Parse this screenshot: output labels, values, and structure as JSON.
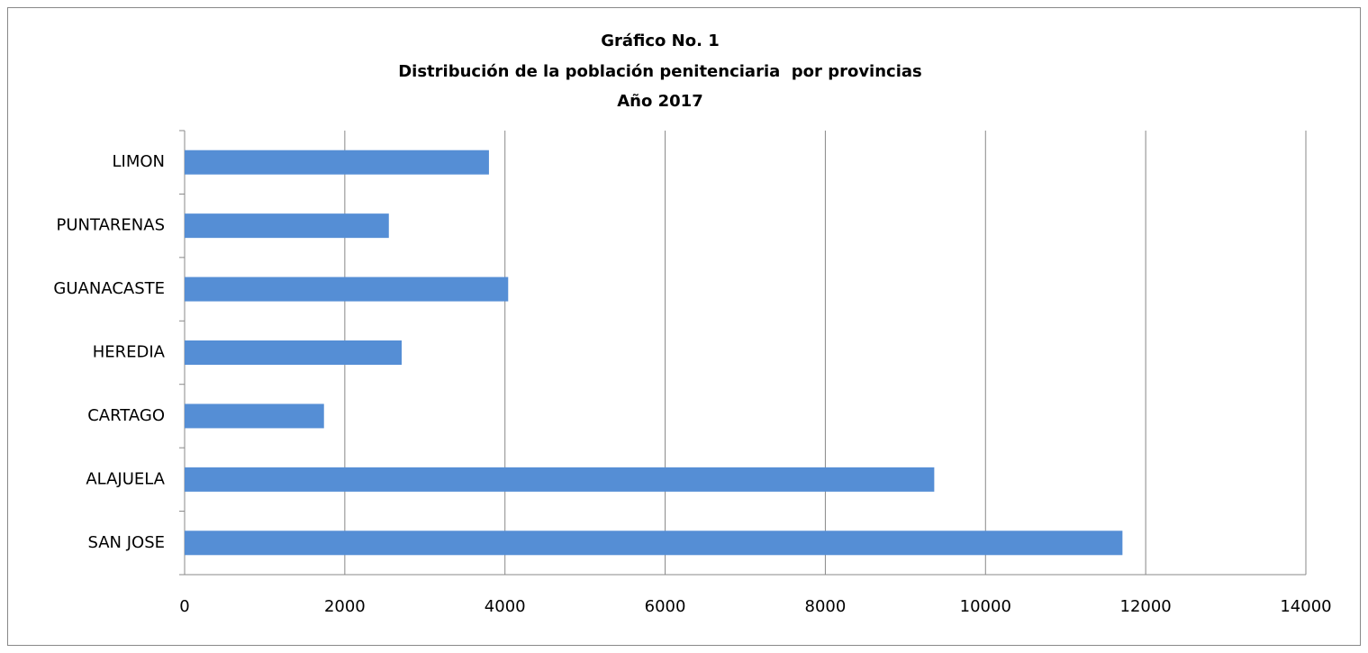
{
  "chart_data": {
    "type": "bar",
    "orientation": "horizontal",
    "title": [
      "Gráfico No. 1",
      "Distribución de la población penitenciaria  por provincias",
      "Año 2017"
    ],
    "categories": [
      "SAN JOSE",
      "ALAJUELA",
      "CARTAGO",
      "HEREDIA",
      "GUANACASTE",
      "PUNTARENAS",
      "LIMON"
    ],
    "values": [
      11710,
      9360,
      1740,
      2710,
      4040,
      2550,
      3800
    ],
    "color": "#558ed5",
    "xlim": [
      0,
      14000
    ],
    "xticks": [
      0,
      2000,
      4000,
      6000,
      8000,
      10000,
      12000,
      14000
    ],
    "grid": true
  }
}
